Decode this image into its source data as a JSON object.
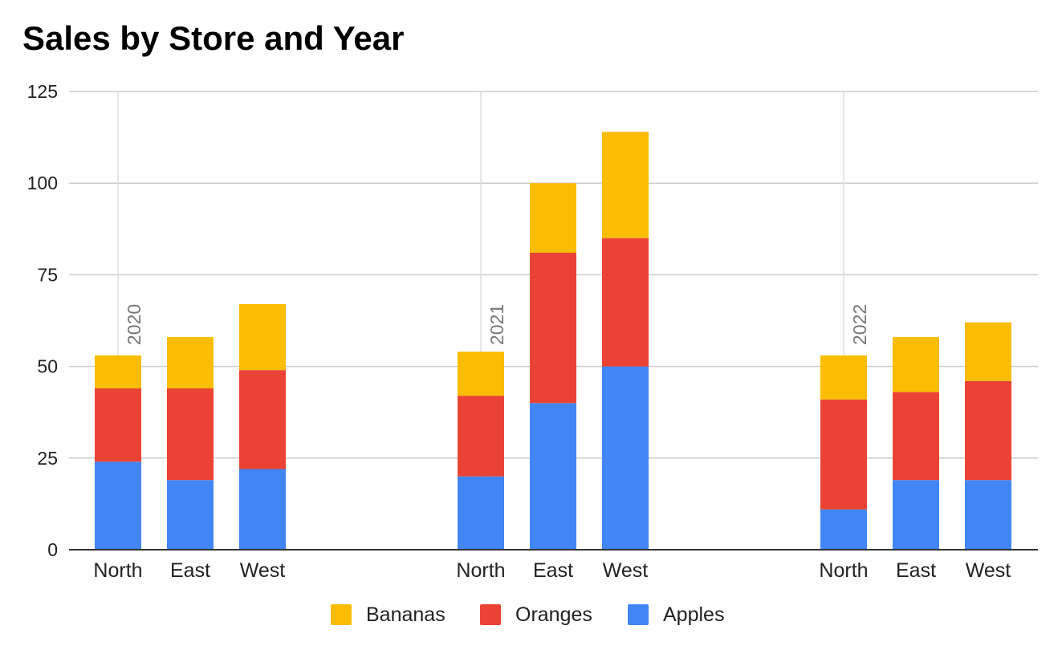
{
  "chart_data": {
    "type": "bar",
    "stacked": true,
    "title": "Sales by Store and Year",
    "xlabel": "",
    "ylabel": "",
    "ylim": [
      0,
      125
    ],
    "yticks": [
      0,
      25,
      50,
      75,
      100,
      125
    ],
    "grid": true,
    "legend_position": "bottom",
    "groups": [
      {
        "label": "2020",
        "categories": [
          "North",
          "East",
          "West"
        ],
        "series": [
          {
            "name": "Apples",
            "values": [
              24,
              19,
              22
            ]
          },
          {
            "name": "Oranges",
            "values": [
              20,
              25,
              27
            ]
          },
          {
            "name": "Bananas",
            "values": [
              9,
              14,
              18
            ]
          }
        ]
      },
      {
        "label": "2021",
        "categories": [
          "North",
          "East",
          "West"
        ],
        "series": [
          {
            "name": "Apples",
            "values": [
              20,
              40,
              50
            ]
          },
          {
            "name": "Oranges",
            "values": [
              22,
              41,
              35
            ]
          },
          {
            "name": "Bananas",
            "values": [
              12,
              19,
              29
            ]
          }
        ]
      },
      {
        "label": "2022",
        "categories": [
          "North",
          "East",
          "West"
        ],
        "series": [
          {
            "name": "Apples",
            "values": [
              11,
              19,
              19
            ]
          },
          {
            "name": "Oranges",
            "values": [
              30,
              24,
              27
            ]
          },
          {
            "name": "Bananas",
            "values": [
              12,
              15,
              16
            ]
          }
        ]
      }
    ],
    "legend": [
      {
        "name": "Bananas",
        "color": "#fbbc04"
      },
      {
        "name": "Oranges",
        "color": "#ea4335"
      },
      {
        "name": "Apples",
        "color": "#4285f4"
      }
    ],
    "colors": {
      "Apples": "#4285f4",
      "Oranges": "#ea4335",
      "Bananas": "#fbbc04"
    }
  }
}
